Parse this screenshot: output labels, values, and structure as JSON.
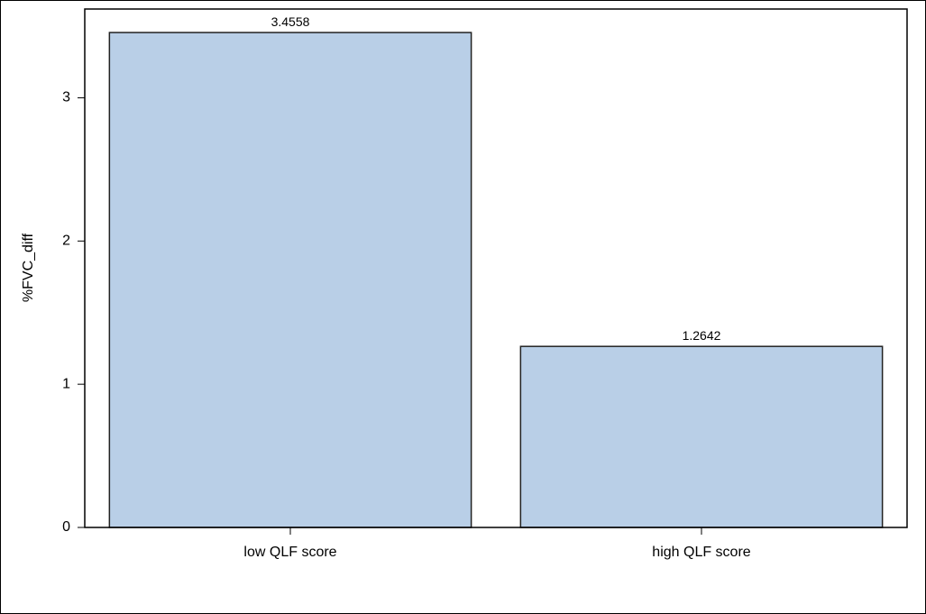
{
  "chart_data": {
    "type": "bar",
    "ylabel": "%FVC_diff",
    "categories": [
      "low QLF score",
      "high QLF score"
    ],
    "values": [
      3.4558,
      1.2642
    ],
    "color": "#b9cfe7",
    "ylim": [
      0,
      3.62
    ],
    "yticks": [
      0,
      1,
      2,
      3
    ]
  }
}
